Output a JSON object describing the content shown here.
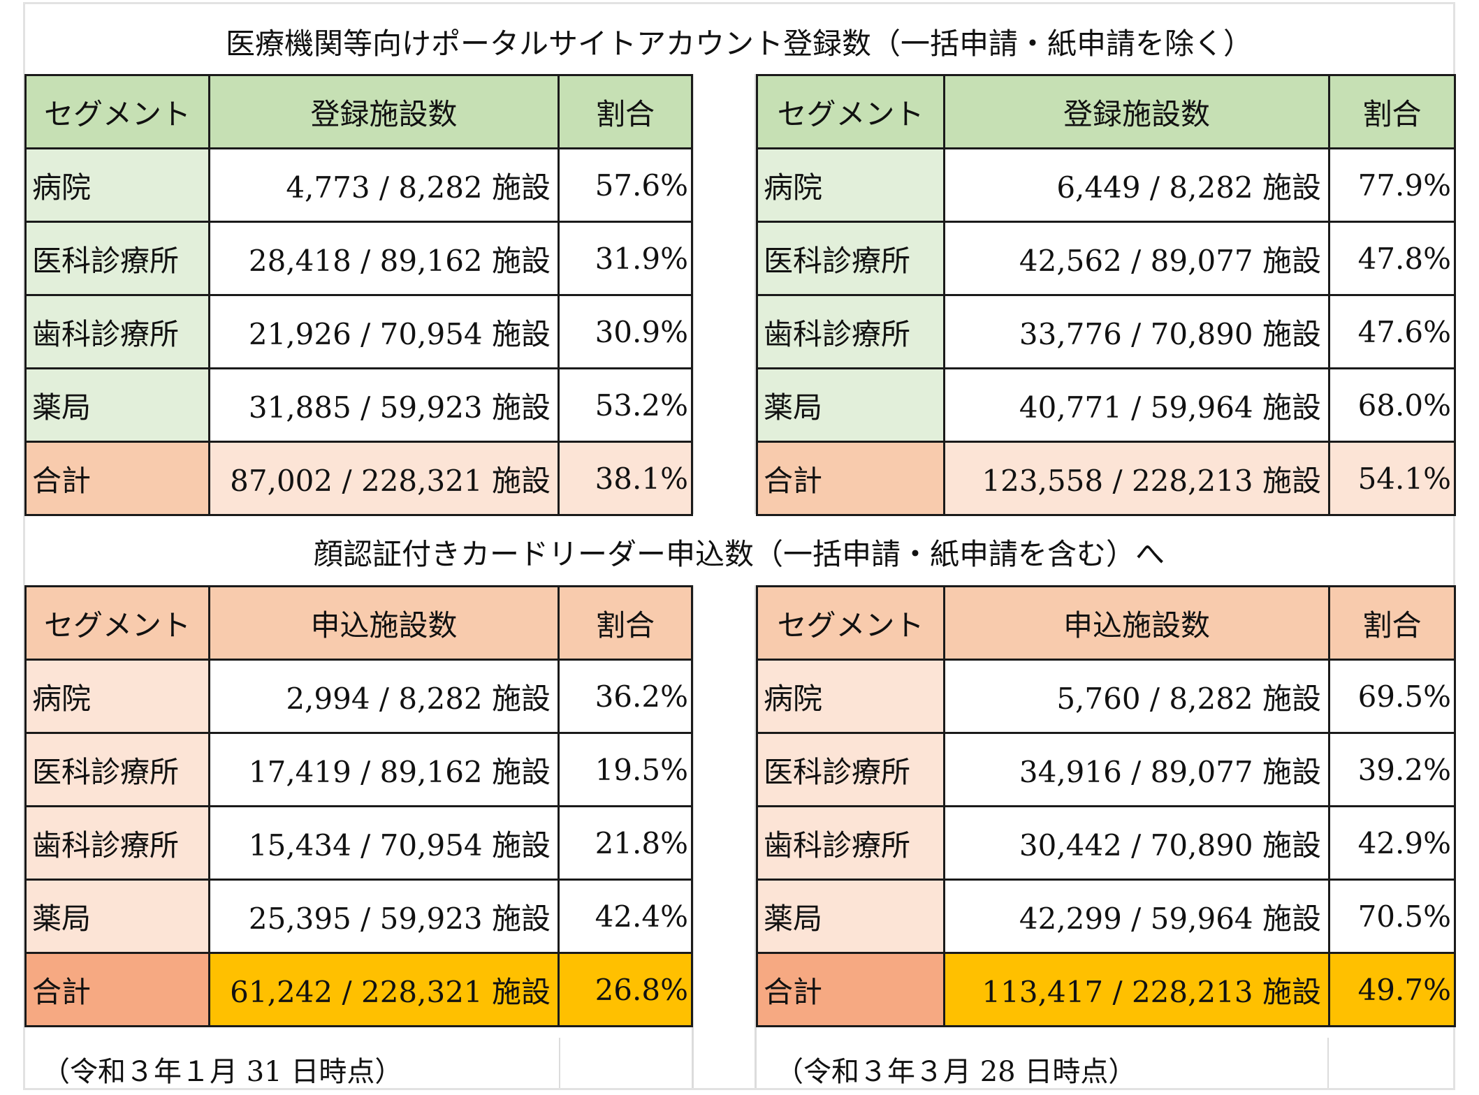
{
  "title_top": "医療機関等向けポータルサイトアカウント登録数（一括申請・紙申請を除く）",
  "title_bottom": "顔認証付きカードリーダー申込数（一括申請・紙申請を含む）へ",
  "top_left": {
    "headers": [
      "セグメント",
      "登録施設数",
      "割合"
    ],
    "rows": [
      {
        "seg": "病院",
        "count": "4,773 / 8,282 施設",
        "pct": "57.6%"
      },
      {
        "seg": "医科診療所",
        "count": "28,418 / 89,162 施設",
        "pct": "31.9%"
      },
      {
        "seg": "歯科診療所",
        "count": "21,926 / 70,954 施設",
        "pct": "30.9%"
      },
      {
        "seg": "薬局",
        "count": "31,885 / 59,923 施設",
        "pct": "53.2%"
      },
      {
        "seg": "合計",
        "count": "87,002 / 228,321 施設",
        "pct": "38.1%"
      }
    ]
  },
  "top_right": {
    "headers": [
      "セグメント",
      "登録施設数",
      "割合"
    ],
    "rows": [
      {
        "seg": "病院",
        "count": "6,449 / 8,282 施設",
        "pct": "77.9%"
      },
      {
        "seg": "医科診療所",
        "count": "42,562 / 89,077 施設",
        "pct": "47.8%"
      },
      {
        "seg": "歯科診療所",
        "count": "33,776 / 70,890 施設",
        "pct": "47.6%"
      },
      {
        "seg": "薬局",
        "count": "40,771 / 59,964 施設",
        "pct": "68.0%"
      },
      {
        "seg": "合計",
        "count": "123,558 / 228,213 施設",
        "pct": "54.1%"
      }
    ]
  },
  "bottom_left": {
    "headers": [
      "セグメント",
      "申込施設数",
      "割合"
    ],
    "rows": [
      {
        "seg": "病院",
        "count": "2,994 / 8,282 施設",
        "pct": "36.2%"
      },
      {
        "seg": "医科診療所",
        "count": "17,419 / 89,162 施設",
        "pct": "19.5%"
      },
      {
        "seg": "歯科診療所",
        "count": "15,434 / 70,954 施設",
        "pct": "21.8%"
      },
      {
        "seg": "薬局",
        "count": "25,395 / 59,923 施設",
        "pct": "42.4%"
      },
      {
        "seg": "合計",
        "count": "61,242 / 228,321 施設",
        "pct": "26.8%"
      }
    ]
  },
  "bottom_right": {
    "headers": [
      "セグメント",
      "申込施設数",
      "割合"
    ],
    "rows": [
      {
        "seg": "病院",
        "count": "5,760 / 8,282 施設",
        "pct": "69.5%"
      },
      {
        "seg": "医科診療所",
        "count": "34,916 / 89,077 施設",
        "pct": "39.2%"
      },
      {
        "seg": "歯科診療所",
        "count": "30,442 / 70,890 施設",
        "pct": "42.9%"
      },
      {
        "seg": "薬局",
        "count": "42,299 / 59,964 施設",
        "pct": "70.5%"
      },
      {
        "seg": "合計",
        "count": "113,417 / 228,213 施設",
        "pct": "49.7%"
      }
    ]
  },
  "note_left": "（令和３年１月 31 日時点）",
  "note_right": "（令和３年３月 28 日時点）",
  "colors": {
    "green_header": "#c6e0b4",
    "green_light": "#e2efda",
    "orange_header": "#f8cbad",
    "orange_light": "#fce4d6",
    "orange_total": "#f4b084",
    "yellow_total": "#ffc000"
  }
}
